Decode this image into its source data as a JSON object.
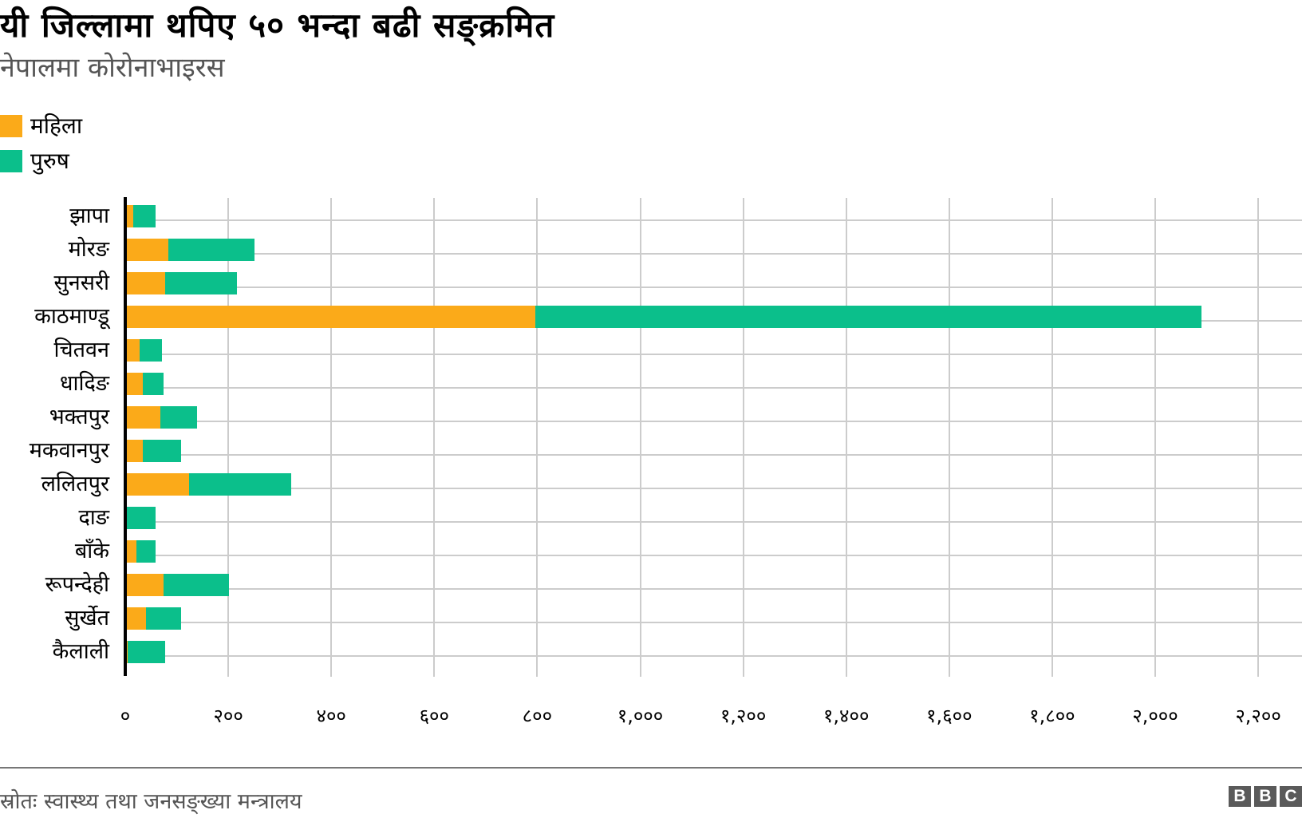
{
  "header": {
    "title": "यी जिल्लामा थपिए ५० भन्दा बढी सङ्क्रमित",
    "subtitle": "नेपालमा कोरोनाभाइरस"
  },
  "legend": [
    {
      "label": "महिला",
      "color": "#fbaa19"
    },
    {
      "label": "पुरुष",
      "color": "#0bbf8b"
    }
  ],
  "footer": {
    "source": "स्रोतः स्वास्थ्य तथा जनसङ्ख्या मन्त्रालय",
    "logo": [
      "B",
      "B",
      "C"
    ]
  },
  "chart_data": {
    "type": "bar",
    "orientation": "horizontal",
    "stacked": true,
    "title": "यी जिल्लामा थपिए ५० भन्दा बढी सङ्क्रमित",
    "subtitle": "नेपालमा कोरोनाभाइरस",
    "xlabel": "",
    "ylabel": "",
    "xlim": [
      0,
      2200
    ],
    "grid": true,
    "legend_position": "top-left",
    "x_ticks": [
      0,
      200,
      400,
      600,
      800,
      1000,
      1200,
      1400,
      1600,
      1800,
      2000,
      2200
    ],
    "x_tick_labels": [
      "०",
      "२००",
      "४००",
      "६००",
      "८००",
      "१,०००",
      "१,२००",
      "१,४००",
      "१,६००",
      "१,८००",
      "२,०००",
      "२,२००"
    ],
    "categories": [
      "झापा",
      "मोरङ",
      "सुनसरी",
      "काठमाण्डू",
      "चितवन",
      "धादिङ",
      "भक्तपुर",
      "मकवानपुर",
      "ललितपुर",
      "दाङ",
      "बाँके",
      "रूपन्देही",
      "सुर्खेत",
      "कैलाली"
    ],
    "series": [
      {
        "name": "महिला",
        "color": "#fbaa19",
        "values": [
          15,
          84,
          78,
          797,
          28,
          34,
          68,
          34,
          124,
          2,
          22,
          74,
          40,
          5
        ]
      },
      {
        "name": "पुरुष",
        "color": "#0bbf8b",
        "values": [
          44,
          167,
          139,
          1293,
          43,
          40,
          72,
          74,
          198,
          57,
          37,
          127,
          68,
          73
        ]
      }
    ],
    "source": "स्रोतः स्वास्थ्य तथा जनसङ्ख्या मन्त्रालय"
  }
}
